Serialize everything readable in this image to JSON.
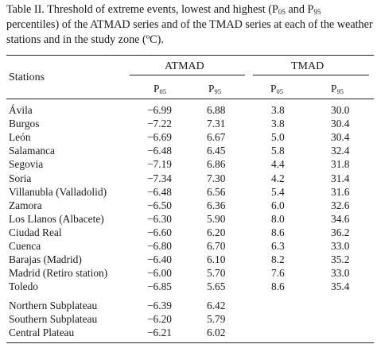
{
  "caption": {
    "part1": "Table II. Threshold of extreme events, lowest and highest (P",
    "sub1": "05",
    "part2": " and P",
    "sub2": "95",
    "part3": " percentiles) of the ATMAD series and of the TMAD series at each of the weather stations and in the study zone (ºC)."
  },
  "header": {
    "stations": "Stations",
    "atmad": "ATMAD",
    "tmad": "TMAD",
    "p": "P",
    "p05": "05",
    "p95": "95"
  },
  "rows": [
    {
      "station": "Ávila",
      "atmad_p05": "−6.99",
      "atmad_p95": "6.88",
      "tmad_p05": "3.8",
      "tmad_p95": "30.0"
    },
    {
      "station": "Burgos",
      "atmad_p05": "−7.22",
      "atmad_p95": "7.31",
      "tmad_p05": "3.8",
      "tmad_p95": "30.4"
    },
    {
      "station": "León",
      "atmad_p05": "−6.69",
      "atmad_p95": "6.67",
      "tmad_p05": "5.0",
      "tmad_p95": "30.4"
    },
    {
      "station": "Salamanca",
      "atmad_p05": "−6.48",
      "atmad_p95": "6.45",
      "tmad_p05": "5.8",
      "tmad_p95": "32.4"
    },
    {
      "station": "Segovia",
      "atmad_p05": "−7.19",
      "atmad_p95": "6.86",
      "tmad_p05": "4.4",
      "tmad_p95": "31.8"
    },
    {
      "station": "Soria",
      "atmad_p05": "−7.34",
      "atmad_p95": "7.30",
      "tmad_p05": "4.2",
      "tmad_p95": "31.4"
    },
    {
      "station": "Villanubla (Valladolid)",
      "atmad_p05": "−6.48",
      "atmad_p95": "6.56",
      "tmad_p05": "5.4",
      "tmad_p95": "31.6"
    },
    {
      "station": "Zamora",
      "atmad_p05": "−6.50",
      "atmad_p95": "6.36",
      "tmad_p05": "6.0",
      "tmad_p95": "32.6"
    },
    {
      "station": "Los Llanos (Albacete)",
      "atmad_p05": "−6.30",
      "atmad_p95": "5.90",
      "tmad_p05": "8.0",
      "tmad_p95": "34.6"
    },
    {
      "station": "Ciudad Real",
      "atmad_p05": "−6.60",
      "atmad_p95": "6.20",
      "tmad_p05": "8.6",
      "tmad_p95": "36.2"
    },
    {
      "station": "Cuenca",
      "atmad_p05": "−6.80",
      "atmad_p95": "6.70",
      "tmad_p05": "6.3",
      "tmad_p95": "33.0"
    },
    {
      "station": "Barajas (Madrid)",
      "atmad_p05": "−6.40",
      "atmad_p95": "6.10",
      "tmad_p05": "8.2",
      "tmad_p95": "35.2"
    },
    {
      "station": "Madrid (Retiro station)",
      "atmad_p05": "−6.00",
      "atmad_p95": "5.70",
      "tmad_p05": "7.6",
      "tmad_p95": "33.0"
    },
    {
      "station": "Toledo",
      "atmad_p05": "−6.85",
      "atmad_p95": "5.65",
      "tmad_p05": "8.6",
      "tmad_p95": "35.4"
    }
  ],
  "zones": [
    {
      "station": "Northern Subplateau",
      "atmad_p05": "−6.39",
      "atmad_p95": "6.42",
      "tmad_p05": "",
      "tmad_p95": ""
    },
    {
      "station": "Southern Subplateau",
      "atmad_p05": "−6.20",
      "atmad_p95": "5.79",
      "tmad_p05": "",
      "tmad_p95": ""
    },
    {
      "station": "Central Plateau",
      "atmad_p05": "−6.21",
      "atmad_p95": "6.02",
      "tmad_p05": "",
      "tmad_p95": ""
    }
  ]
}
